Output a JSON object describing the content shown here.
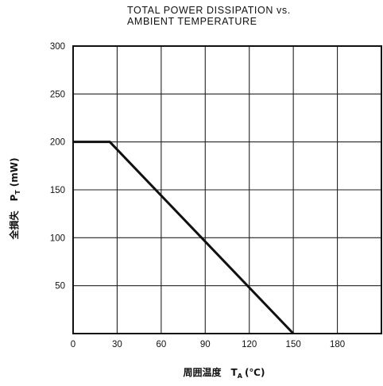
{
  "chart_data": {
    "type": "line",
    "title_lines": [
      "TOTAL POWER DISSIPATION vs.",
      "AMBIENT TEMPERATURE"
    ],
    "xlabel": {
      "main": "周囲温度　T",
      "sub": "A",
      "unit": "(℃)"
    },
    "ylabel": {
      "main": "全損失　P",
      "sub": "T",
      "unit": "(mW)"
    },
    "xlim": [
      0,
      210
    ],
    "ylim": [
      0,
      300
    ],
    "x_ticks": [
      0,
      30,
      60,
      90,
      120,
      150,
      180
    ],
    "y_ticks": [
      50,
      100,
      150,
      200,
      250,
      300
    ],
    "grid": true,
    "series": [
      {
        "x": [
          0,
          25,
          150
        ],
        "y": [
          200,
          200,
          0
        ]
      }
    ]
  }
}
